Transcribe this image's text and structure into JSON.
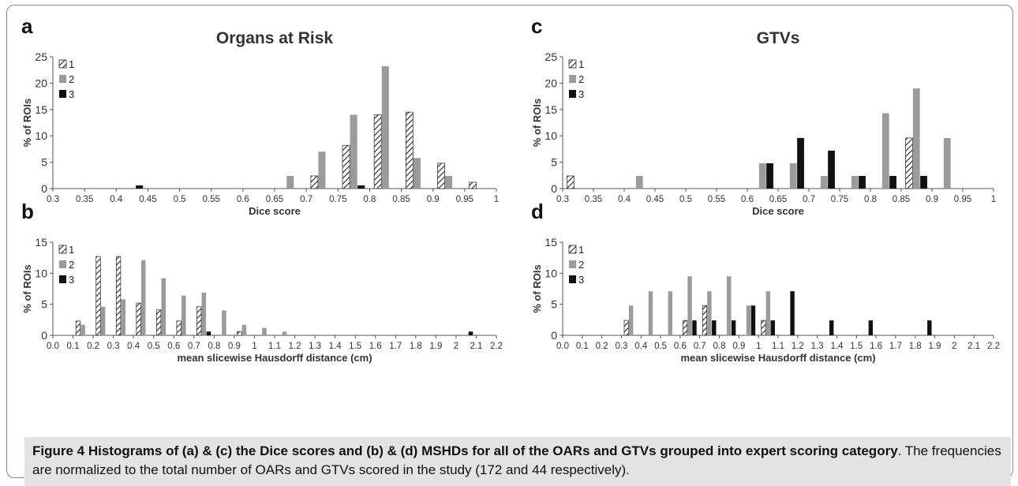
{
  "caption": {
    "title": "Figure 4 Histograms of (a) & (c) the Dice scores and (b) & (d) MSHDs for all of the OARs and GTVs grouped into expert scoring category",
    "body": ". The frequencies are normalized to the total number of OARs and GTVs scored in the study (172 and 44 respectively)."
  },
  "colors": {
    "s1": "hatched",
    "s2": "#9b9b9b",
    "s3": "#111111"
  },
  "chart_data": [
    {
      "id": "a",
      "panel": "a",
      "type": "bar",
      "title": "Organs at Risk",
      "xlabel": "Dice score",
      "ylabel": "% of ROIs",
      "xlim": [
        0.3,
        1
      ],
      "ylim": [
        0,
        25
      ],
      "xticks": [
        "0.3",
        "0.35",
        "0.4",
        "0.45",
        "0.5",
        "0.55",
        "0.6",
        "0.65",
        "0.7",
        "0.75",
        "0.8",
        "0.85",
        "0.9",
        "0.95",
        "1"
      ],
      "yticks": [
        "0",
        "5",
        "10",
        "15",
        "20",
        "25"
      ],
      "bin_width": 0.05,
      "legend": [
        "1",
        "2",
        "3"
      ],
      "series": [
        {
          "name": "1",
          "points": [
            [
              0.7,
              2.4
            ],
            [
              0.75,
              8.2
            ],
            [
              0.8,
              14
            ],
            [
              0.85,
              14.5
            ],
            [
              0.9,
              4.8
            ],
            [
              0.95,
              1.2
            ]
          ]
        },
        {
          "name": "2",
          "points": [
            [
              0.65,
              2.4
            ],
            [
              0.7,
              7
            ],
            [
              0.75,
              14
            ],
            [
              0.8,
              23.2
            ],
            [
              0.85,
              5.8
            ],
            [
              0.9,
              2.4
            ]
          ]
        },
        {
          "name": "3",
          "points": [
            [
              0.4,
              0.6
            ],
            [
              0.75,
              0.6
            ]
          ]
        }
      ]
    },
    {
      "id": "c",
      "panel": "c",
      "type": "bar",
      "title": "GTVs",
      "xlabel": "Dice score",
      "ylabel": "% of ROIs",
      "xlim": [
        0.3,
        1
      ],
      "ylim": [
        0,
        25
      ],
      "xticks": [
        "0.3",
        "0.35",
        "0.4",
        "0.45",
        "0.5",
        "0.55",
        "0.6",
        "0.65",
        "0.7",
        "0.75",
        "0.8",
        "0.85",
        "0.9",
        "0.95",
        "1"
      ],
      "yticks": [
        "0",
        "5",
        "10",
        "15",
        "20",
        "25"
      ],
      "bin_width": 0.05,
      "legend": [
        "1",
        "2",
        "3"
      ],
      "series": [
        {
          "name": "1",
          "points": [
            [
              0.3,
              2.4
            ],
            [
              0.85,
              9.6
            ]
          ]
        },
        {
          "name": "2",
          "points": [
            [
              0.4,
              2.4
            ],
            [
              0.6,
              4.8
            ],
            [
              0.65,
              4.8
            ],
            [
              0.7,
              2.4
            ],
            [
              0.75,
              2.4
            ],
            [
              0.8,
              14.3
            ],
            [
              0.85,
              19
            ],
            [
              0.9,
              9.6
            ]
          ]
        },
        {
          "name": "3",
          "points": [
            [
              0.6,
              4.8
            ],
            [
              0.65,
              9.6
            ],
            [
              0.7,
              7.2
            ],
            [
              0.75,
              2.4
            ],
            [
              0.8,
              2.4
            ],
            [
              0.85,
              2.4
            ]
          ]
        }
      ]
    },
    {
      "id": "b",
      "panel": "b",
      "type": "bar",
      "title": "",
      "xlabel": "mean slicewise Hausdorff distance (cm)",
      "ylabel": "% of ROIs",
      "xlim": [
        0,
        2.2
      ],
      "ylim": [
        0,
        15
      ],
      "xticks": [
        "0.0",
        "0.1",
        "0.2",
        "0.3",
        "0.4",
        "0.5",
        "0.6",
        "0.7",
        "0.8",
        "0.9",
        "1",
        "1.1",
        "1.2",
        "1.3",
        "1.4",
        "1.5",
        "1.6",
        "1.7",
        "1.8",
        "1.9",
        "2",
        "2.1",
        "2.2"
      ],
      "yticks": [
        "0",
        "5",
        "10",
        "15"
      ],
      "bin_width": 0.1,
      "legend": [
        "1",
        "2",
        "3"
      ],
      "series": [
        {
          "name": "1",
          "points": [
            [
              0.1,
              2.3
            ],
            [
              0.2,
              12.7
            ],
            [
              0.3,
              12.7
            ],
            [
              0.4,
              5.2
            ],
            [
              0.5,
              4.1
            ],
            [
              0.6,
              2.3
            ],
            [
              0.7,
              4.6
            ],
            [
              0.9,
              0.6
            ]
          ]
        },
        {
          "name": "2",
          "points": [
            [
              0.1,
              1.7
            ],
            [
              0.2,
              4.6
            ],
            [
              0.3,
              5.8
            ],
            [
              0.4,
              12.1
            ],
            [
              0.5,
              9.2
            ],
            [
              0.6,
              6.4
            ],
            [
              0.7,
              6.9
            ],
            [
              0.8,
              4.0
            ],
            [
              0.9,
              1.7
            ],
            [
              1.0,
              1.2
            ],
            [
              1.1,
              0.6
            ]
          ]
        },
        {
          "name": "3",
          "points": [
            [
              0.7,
              0.6
            ],
            [
              2.0,
              0.6
            ]
          ]
        }
      ]
    },
    {
      "id": "d",
      "panel": "d",
      "type": "bar",
      "title": "",
      "xlabel": "mean slicewise Hausdorff distance (cm)",
      "ylabel": "% of ROIs",
      "xlim": [
        0,
        2.2
      ],
      "ylim": [
        0,
        15
      ],
      "xticks": [
        "0.0",
        "0.1",
        "0.2",
        "0.3",
        "0.4",
        "0.5",
        "0.6",
        "0.7",
        "0.8",
        "0.9",
        "1",
        "1.1",
        "1.2",
        "1.3",
        "1.4",
        "1.5",
        "1.6",
        "1.7",
        "1.8",
        "1.9",
        "2",
        "2.1",
        "2.2"
      ],
      "yticks": [
        "0",
        "5",
        "10",
        "15"
      ],
      "bin_width": 0.1,
      "legend": [
        "1",
        "2",
        "3"
      ],
      "series": [
        {
          "name": "1",
          "points": [
            [
              0.3,
              2.4
            ],
            [
              0.6,
              2.4
            ],
            [
              0.7,
              4.8
            ],
            [
              1.0,
              2.4
            ]
          ]
        },
        {
          "name": "2",
          "points": [
            [
              0.3,
              4.8
            ],
            [
              0.4,
              7.1
            ],
            [
              0.5,
              7.1
            ],
            [
              0.6,
              9.5
            ],
            [
              0.7,
              7.1
            ],
            [
              0.8,
              9.5
            ],
            [
              0.9,
              4.8
            ],
            [
              1.0,
              7.1
            ]
          ]
        },
        {
          "name": "3",
          "points": [
            [
              0.6,
              2.4
            ],
            [
              0.7,
              2.4
            ],
            [
              0.8,
              2.4
            ],
            [
              0.9,
              4.8
            ],
            [
              1.0,
              2.4
            ],
            [
              1.1,
              7.1
            ],
            [
              1.3,
              2.4
            ],
            [
              1.5,
              2.4
            ],
            [
              1.8,
              2.4
            ]
          ]
        }
      ]
    }
  ]
}
